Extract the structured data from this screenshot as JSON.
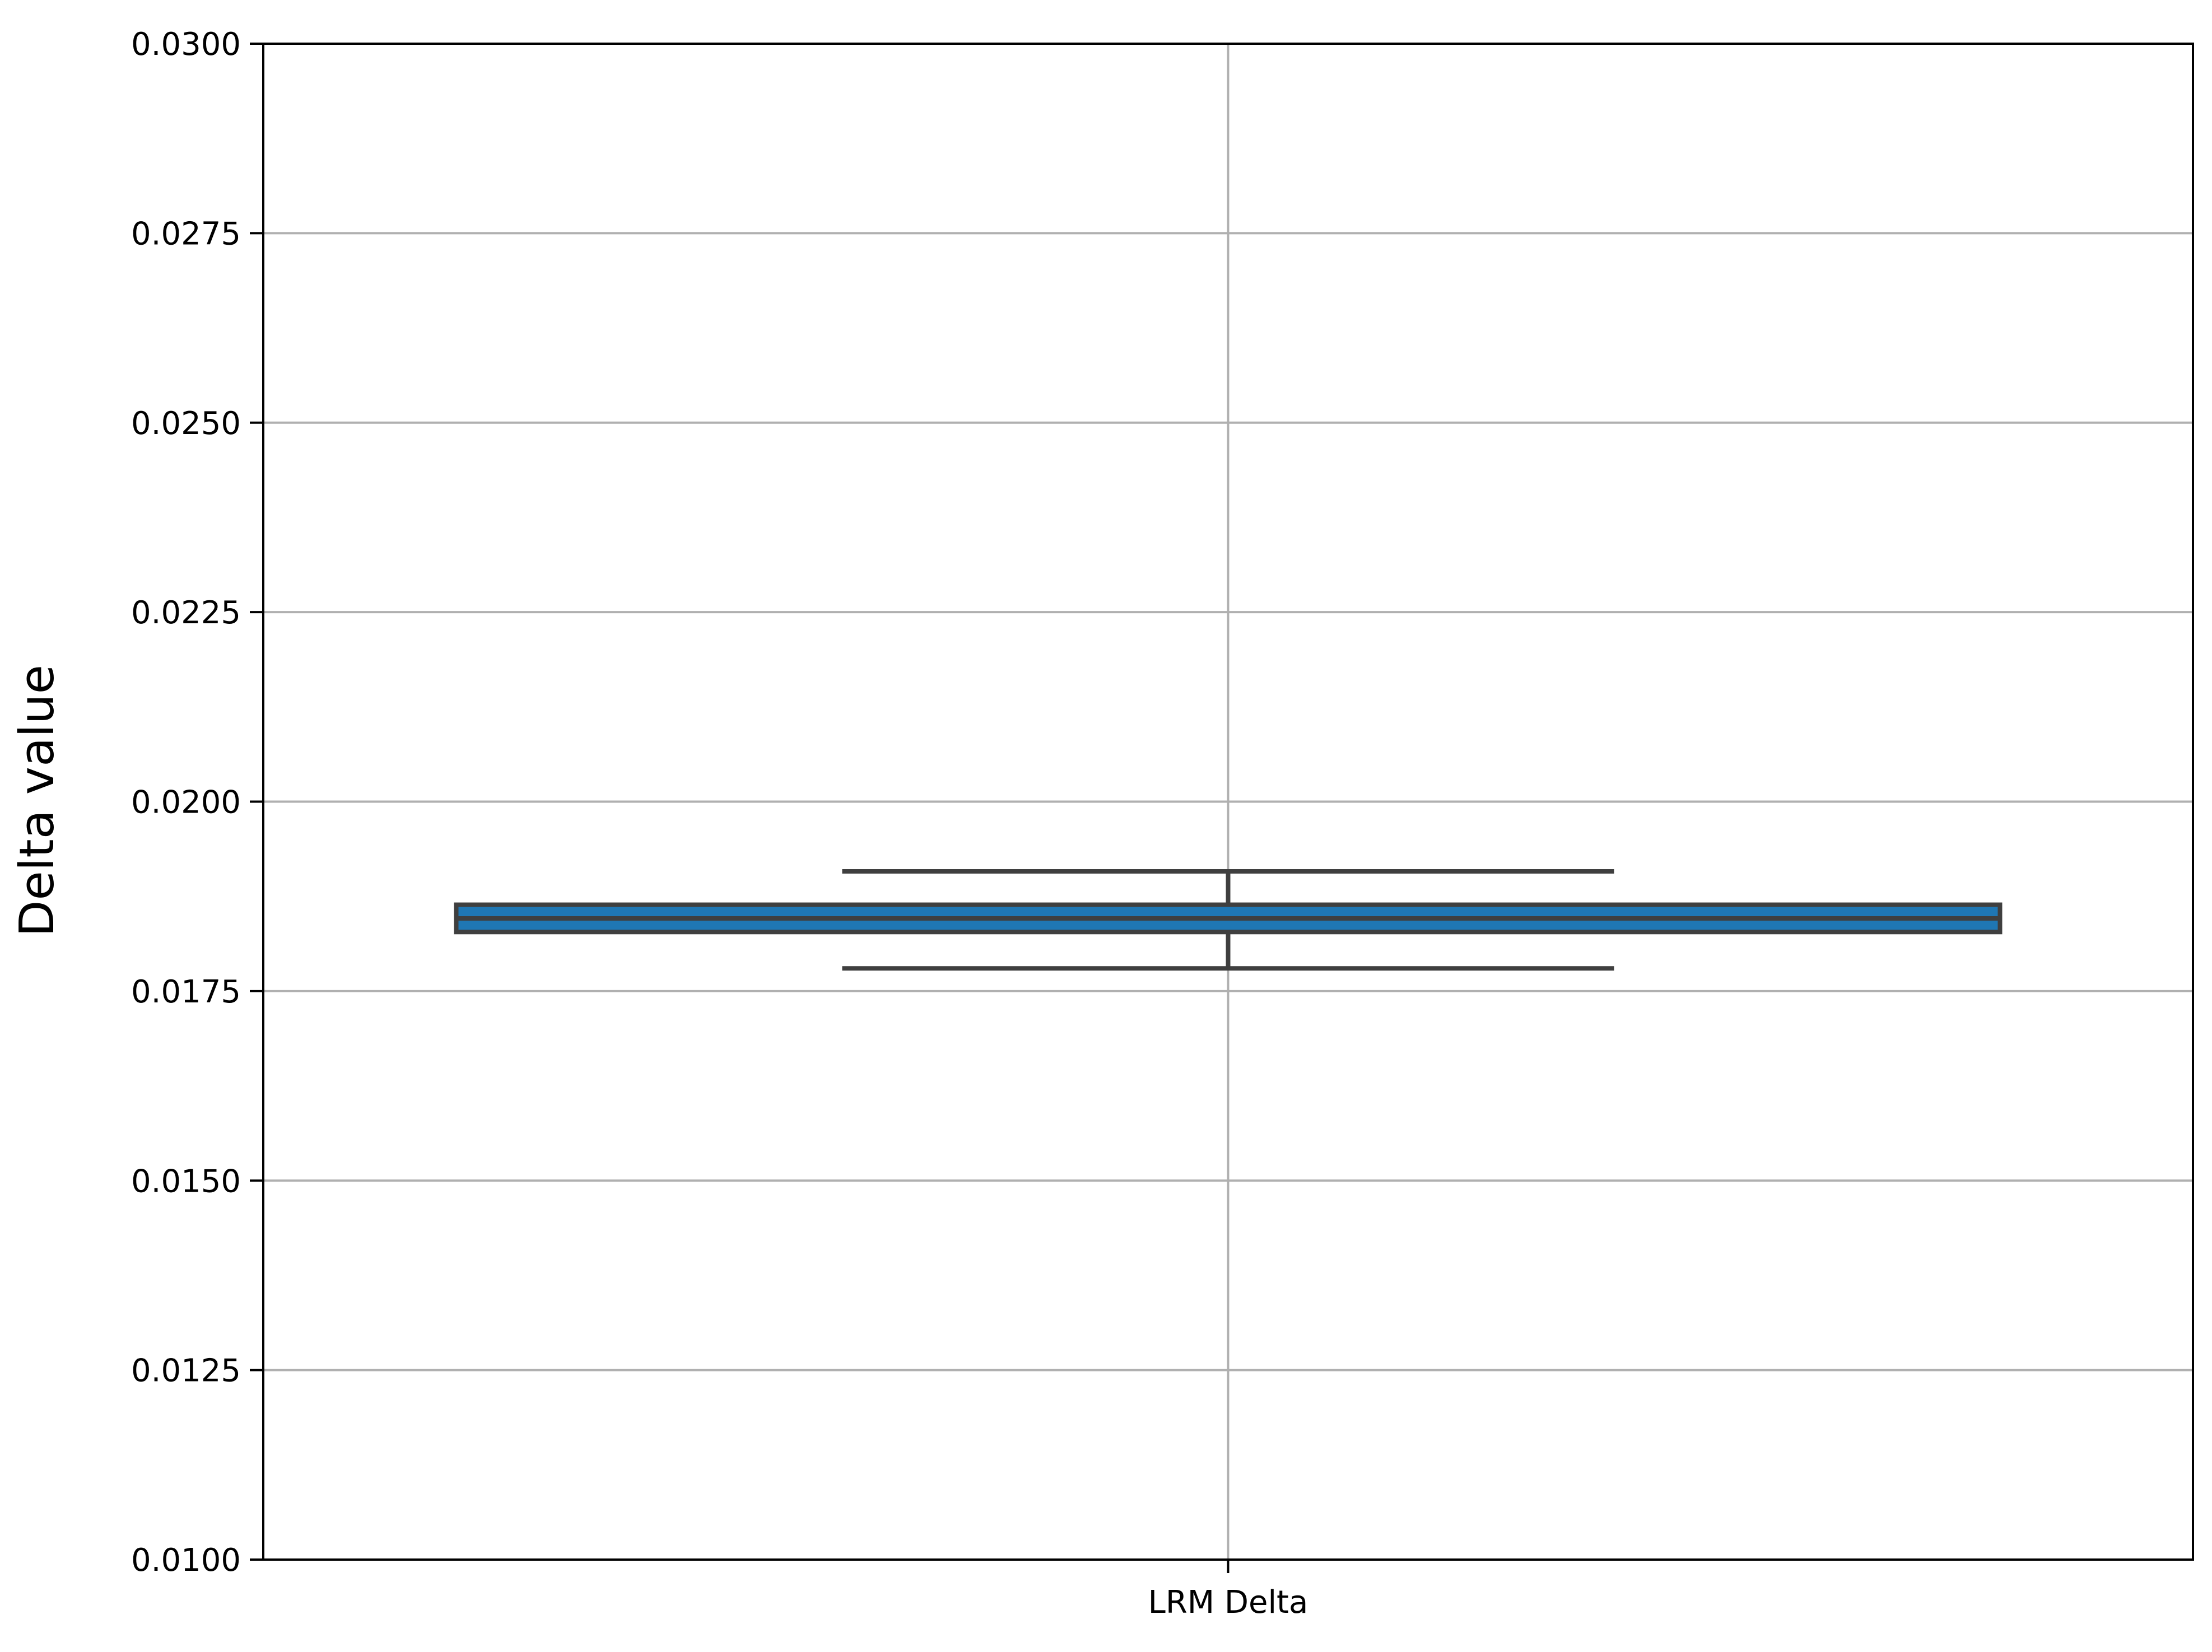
{
  "chart_data": {
    "type": "box",
    "categories": [
      "LRM Delta"
    ],
    "boxes": [
      {
        "category": "LRM Delta",
        "whisker_low": 0.0178,
        "q1": 0.01828,
        "median": 0.01846,
        "q3": 0.01864,
        "whisker_high": 0.01908
      }
    ],
    "ylabel": "Delta value",
    "xlabel": "",
    "ylim": [
      0.01,
      0.03
    ],
    "yticks": [
      "0.0100",
      "0.0125",
      "0.0150",
      "0.0175",
      "0.0200",
      "0.0225",
      "0.0250",
      "0.0275",
      "0.0300"
    ],
    "grid": true,
    "colors": {
      "box_fill": "#1f77b4",
      "box_edge": "#3f3f3f",
      "grid": "#b0b0b0"
    }
  }
}
